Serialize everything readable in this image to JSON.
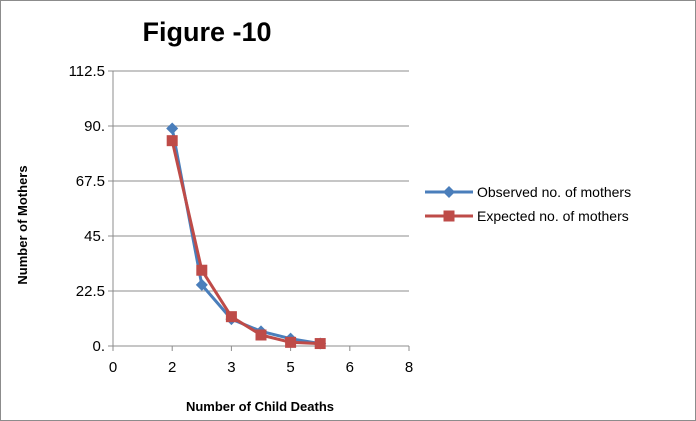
{
  "chart_data": {
    "type": "line",
    "title": "Figure -10",
    "xlabel": "Number of Child Deaths",
    "ylabel": "Number of Mothers",
    "x_tick_labels": [
      "0",
      "2",
      "3",
      "5",
      "6",
      "8"
    ],
    "y_tick_labels": [
      "0.",
      "22.5",
      "45.",
      "67.5",
      "90.",
      "112.5"
    ],
    "xlim": [
      0,
      8
    ],
    "ylim": [
      0,
      112.5
    ],
    "grid": "horizontal",
    "legend_position": "right",
    "series": [
      {
        "name": "Observed no. of mothers",
        "color": "#4a7ebb",
        "marker": "diamond",
        "x": [
          1.6,
          2.4,
          3.2,
          4.0,
          4.8,
          5.6
        ],
        "y": [
          89,
          25,
          11,
          6,
          3,
          1
        ]
      },
      {
        "name": "Expected no. of mothers",
        "color": "#be4b48",
        "marker": "square",
        "x": [
          1.6,
          2.4,
          3.2,
          4.0,
          4.8,
          5.6
        ],
        "y": [
          84,
          31,
          12,
          4.5,
          1.5,
          1
        ]
      }
    ]
  }
}
